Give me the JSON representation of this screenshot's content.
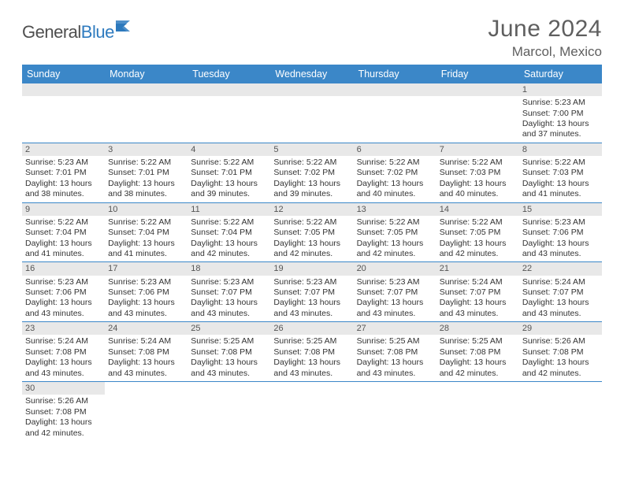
{
  "brand": {
    "general": "General",
    "blue": "Blue"
  },
  "title": {
    "month": "June 2024",
    "location": "Marcol, Mexico"
  },
  "colors": {
    "header_bg": "#3b87c8",
    "header_fg": "#ffffff",
    "daynum_bg": "#e8e8e8",
    "border": "#3b87c8",
    "text": "#333333",
    "title_fg": "#5f5f5f"
  },
  "daysOfWeek": [
    "Sunday",
    "Monday",
    "Tuesday",
    "Wednesday",
    "Thursday",
    "Friday",
    "Saturday"
  ],
  "weeks": [
    [
      null,
      null,
      null,
      null,
      null,
      null,
      {
        "n": "1",
        "sr": "5:23 AM",
        "ss": "7:00 PM",
        "dl": "13 hours and 37 minutes."
      }
    ],
    [
      {
        "n": "2",
        "sr": "5:23 AM",
        "ss": "7:01 PM",
        "dl": "13 hours and 38 minutes."
      },
      {
        "n": "3",
        "sr": "5:22 AM",
        "ss": "7:01 PM",
        "dl": "13 hours and 38 minutes."
      },
      {
        "n": "4",
        "sr": "5:22 AM",
        "ss": "7:01 PM",
        "dl": "13 hours and 39 minutes."
      },
      {
        "n": "5",
        "sr": "5:22 AM",
        "ss": "7:02 PM",
        "dl": "13 hours and 39 minutes."
      },
      {
        "n": "6",
        "sr": "5:22 AM",
        "ss": "7:02 PM",
        "dl": "13 hours and 40 minutes."
      },
      {
        "n": "7",
        "sr": "5:22 AM",
        "ss": "7:03 PM",
        "dl": "13 hours and 40 minutes."
      },
      {
        "n": "8",
        "sr": "5:22 AM",
        "ss": "7:03 PM",
        "dl": "13 hours and 41 minutes."
      }
    ],
    [
      {
        "n": "9",
        "sr": "5:22 AM",
        "ss": "7:04 PM",
        "dl": "13 hours and 41 minutes."
      },
      {
        "n": "10",
        "sr": "5:22 AM",
        "ss": "7:04 PM",
        "dl": "13 hours and 41 minutes."
      },
      {
        "n": "11",
        "sr": "5:22 AM",
        "ss": "7:04 PM",
        "dl": "13 hours and 42 minutes."
      },
      {
        "n": "12",
        "sr": "5:22 AM",
        "ss": "7:05 PM",
        "dl": "13 hours and 42 minutes."
      },
      {
        "n": "13",
        "sr": "5:22 AM",
        "ss": "7:05 PM",
        "dl": "13 hours and 42 minutes."
      },
      {
        "n": "14",
        "sr": "5:22 AM",
        "ss": "7:05 PM",
        "dl": "13 hours and 42 minutes."
      },
      {
        "n": "15",
        "sr": "5:23 AM",
        "ss": "7:06 PM",
        "dl": "13 hours and 43 minutes."
      }
    ],
    [
      {
        "n": "16",
        "sr": "5:23 AM",
        "ss": "7:06 PM",
        "dl": "13 hours and 43 minutes."
      },
      {
        "n": "17",
        "sr": "5:23 AM",
        "ss": "7:06 PM",
        "dl": "13 hours and 43 minutes."
      },
      {
        "n": "18",
        "sr": "5:23 AM",
        "ss": "7:07 PM",
        "dl": "13 hours and 43 minutes."
      },
      {
        "n": "19",
        "sr": "5:23 AM",
        "ss": "7:07 PM",
        "dl": "13 hours and 43 minutes."
      },
      {
        "n": "20",
        "sr": "5:23 AM",
        "ss": "7:07 PM",
        "dl": "13 hours and 43 minutes."
      },
      {
        "n": "21",
        "sr": "5:24 AM",
        "ss": "7:07 PM",
        "dl": "13 hours and 43 minutes."
      },
      {
        "n": "22",
        "sr": "5:24 AM",
        "ss": "7:07 PM",
        "dl": "13 hours and 43 minutes."
      }
    ],
    [
      {
        "n": "23",
        "sr": "5:24 AM",
        "ss": "7:08 PM",
        "dl": "13 hours and 43 minutes."
      },
      {
        "n": "24",
        "sr": "5:24 AM",
        "ss": "7:08 PM",
        "dl": "13 hours and 43 minutes."
      },
      {
        "n": "25",
        "sr": "5:25 AM",
        "ss": "7:08 PM",
        "dl": "13 hours and 43 minutes."
      },
      {
        "n": "26",
        "sr": "5:25 AM",
        "ss": "7:08 PM",
        "dl": "13 hours and 43 minutes."
      },
      {
        "n": "27",
        "sr": "5:25 AM",
        "ss": "7:08 PM",
        "dl": "13 hours and 43 minutes."
      },
      {
        "n": "28",
        "sr": "5:25 AM",
        "ss": "7:08 PM",
        "dl": "13 hours and 42 minutes."
      },
      {
        "n": "29",
        "sr": "5:26 AM",
        "ss": "7:08 PM",
        "dl": "13 hours and 42 minutes."
      }
    ],
    [
      {
        "n": "30",
        "sr": "5:26 AM",
        "ss": "7:08 PM",
        "dl": "13 hours and 42 minutes."
      },
      null,
      null,
      null,
      null,
      null,
      null
    ]
  ],
  "labels": {
    "sunrise": "Sunrise: ",
    "sunset": "Sunset: ",
    "daylight": "Daylight: "
  }
}
